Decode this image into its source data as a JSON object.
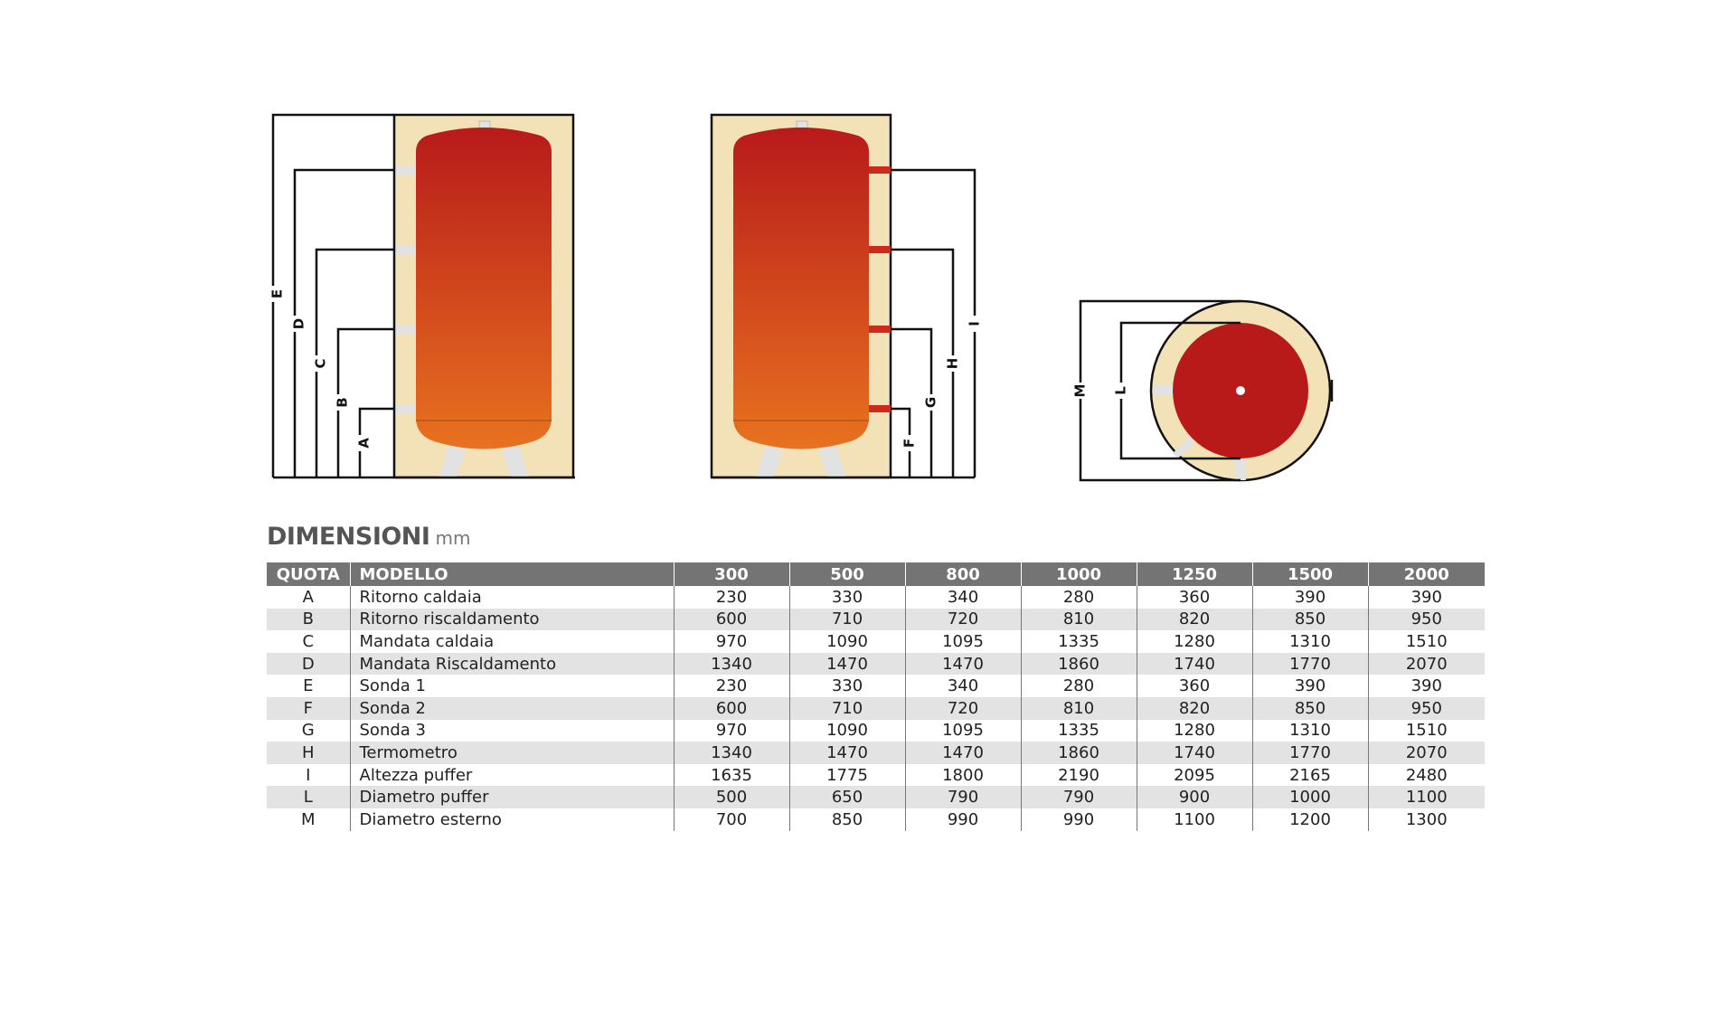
{
  "diagram": {
    "front_view_labels": [
      "A",
      "B",
      "C",
      "D",
      "E"
    ],
    "side_view_labels": [
      "F",
      "G",
      "H",
      "I"
    ],
    "top_view_labels": [
      "L",
      "M"
    ],
    "colors": {
      "insulation": "#f3e2b8",
      "tank_top": "#b81a1a",
      "tank_bottom": "#e8721f",
      "connection_grey": "#e2e2e2",
      "connection_red": "#cc2a1a",
      "lines": "#111111"
    }
  },
  "title": "DIMENSIONI",
  "unit": "mm",
  "table": {
    "header": {
      "quota": "QUOTA",
      "modello": "MODELLO",
      "models": [
        "300",
        "500",
        "800",
        "1000",
        "1250",
        "1500",
        "2000"
      ]
    },
    "rows": [
      {
        "quota": "A",
        "label": "Ritorno caldaia",
        "values": [
          "230",
          "330",
          "340",
          "280",
          "360",
          "390",
          "390"
        ]
      },
      {
        "quota": "B",
        "label": "Ritorno riscaldamento",
        "values": [
          "600",
          "710",
          "720",
          "810",
          "820",
          "850",
          "950"
        ]
      },
      {
        "quota": "C",
        "label": "Mandata caldaia",
        "values": [
          "970",
          "1090",
          "1095",
          "1335",
          "1280",
          "1310",
          "1510"
        ]
      },
      {
        "quota": "D",
        "label": "Mandata Riscaldamento",
        "values": [
          "1340",
          "1470",
          "1470",
          "1860",
          "1740",
          "1770",
          "2070"
        ]
      },
      {
        "quota": "E",
        "label": "Sonda 1",
        "values": [
          "230",
          "330",
          "340",
          "280",
          "360",
          "390",
          "390"
        ]
      },
      {
        "quota": "F",
        "label": "Sonda 2",
        "values": [
          "600",
          "710",
          "720",
          "810",
          "820",
          "850",
          "950"
        ]
      },
      {
        "quota": "G",
        "label": "Sonda 3",
        "values": [
          "970",
          "1090",
          "1095",
          "1335",
          "1280",
          "1310",
          "1510"
        ]
      },
      {
        "quota": "H",
        "label": "Termometro",
        "values": [
          "1340",
          "1470",
          "1470",
          "1860",
          "1740",
          "1770",
          "2070"
        ]
      },
      {
        "quota": "I",
        "label": "Altezza puffer",
        "values": [
          "1635",
          "1775",
          "1800",
          "2190",
          "2095",
          "2165",
          "2480"
        ]
      },
      {
        "quota": "L",
        "label": "Diametro puffer",
        "values": [
          "500",
          "650",
          "790",
          "790",
          "900",
          "1000",
          "1100"
        ]
      },
      {
        "quota": "M",
        "label": "Diametro esterno",
        "values": [
          "700",
          "850",
          "990",
          "990",
          "1100",
          "1200",
          "1300"
        ]
      }
    ]
  }
}
